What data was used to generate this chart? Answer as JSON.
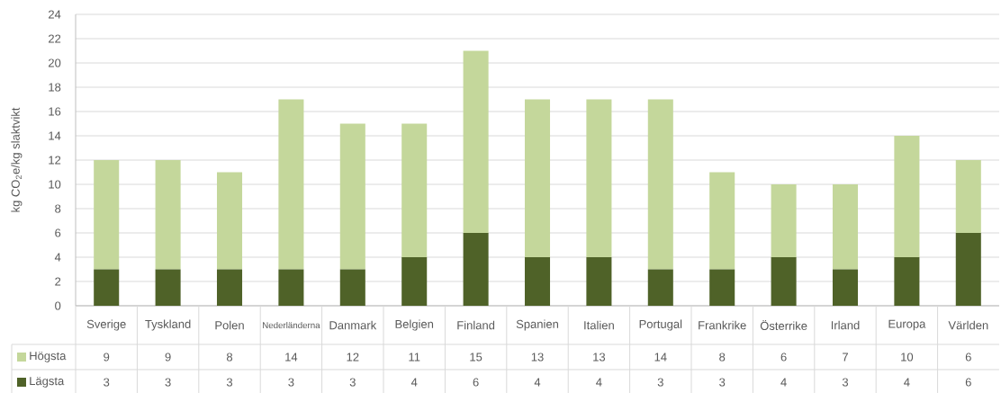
{
  "chart_data": {
    "type": "bar",
    "stacked": true,
    "ylabel": "kg CO$_{2}$e/kg slaktvikt",
    "categories": [
      "Sverige",
      "Tyskland",
      "Polen",
      "Nederländerna",
      "Danmark",
      "Belgien",
      "Finland",
      "Spanien",
      "Italien",
      "Portugal",
      "Frankrike",
      "Österrike",
      "Irland",
      "Europa",
      "Världen"
    ],
    "series": [
      {
        "name": "Lägsta",
        "color": "#4f6228",
        "values": [
          3,
          3,
          3,
          3,
          3,
          4,
          6,
          4,
          4,
          3,
          3,
          4,
          3,
          4,
          6
        ]
      },
      {
        "name": "Högsta",
        "color": "#c4d79b",
        "values": [
          9,
          9,
          8,
          14,
          12,
          11,
          15,
          13,
          13,
          14,
          8,
          6,
          7,
          10,
          6
        ]
      }
    ],
    "ylim": [
      0,
      24
    ],
    "yticks": [
      0,
      2,
      4,
      6,
      8,
      10,
      12,
      14,
      16,
      18,
      20,
      22,
      24
    ],
    "grid": "y",
    "legend": "bottom",
    "data_labels": true
  }
}
